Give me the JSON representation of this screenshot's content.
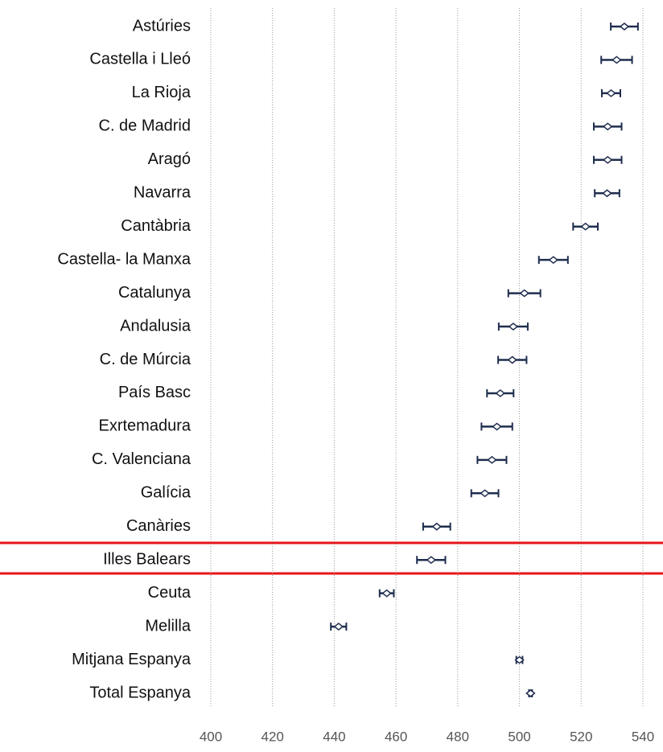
{
  "chart_data": {
    "type": "dot-errorbar",
    "categories": [
      "Astúries",
      "Castella i Lleó",
      "La Rioja",
      "C. de Madrid",
      "Aragó",
      "Navarra",
      "Cantàbria",
      "Castella- la Manxa",
      "Catalunya",
      "Andalusia",
      "C. de Múrcia",
      "País Basc",
      "Exrtemadura",
      "C. Valenciana",
      "Galícia",
      "Canàries",
      "Illes Balears",
      "Ceuta",
      "Melilla",
      "Mitjana Espanya",
      "Total Espanya"
    ],
    "values": [
      534,
      531.5,
      529.7,
      528.6,
      528.6,
      528.4,
      521.4,
      511,
      501.6,
      498,
      497.7,
      493.8,
      492.7,
      491.1,
      488.8,
      473.2,
      471.4,
      457,
      441.4,
      500,
      503.6
    ],
    "errors": [
      4.4,
      5,
      3,
      4.5,
      4.5,
      4,
      4,
      4.7,
      5.2,
      4.7,
      4.6,
      4.3,
      5,
      4.7,
      4.4,
      4.4,
      4.6,
      2.3,
      2.5,
      1,
      0.5
    ],
    "color": "#1f2d4e",
    "xlim": [
      400,
      540
    ],
    "xticks": [
      400,
      420,
      440,
      460,
      480,
      500,
      520,
      540
    ],
    "grid": true
  }
}
